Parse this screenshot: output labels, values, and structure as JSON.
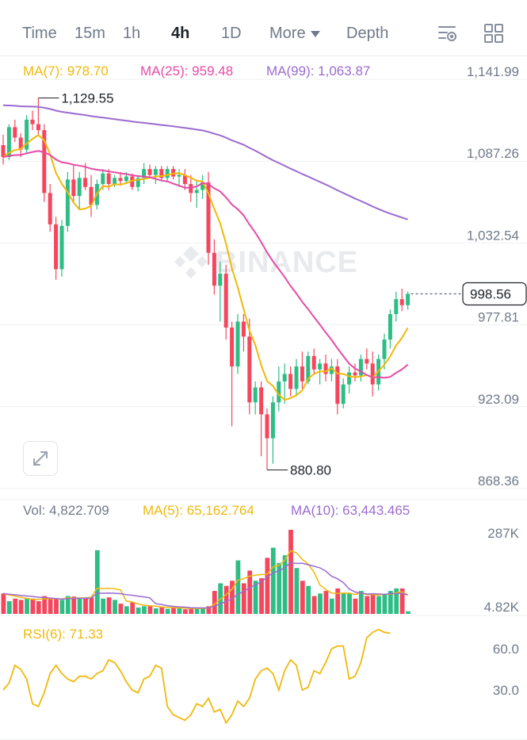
{
  "toolbar": {
    "tabs": [
      "Time",
      "15m",
      "1h",
      "4h",
      "1D"
    ],
    "active_tab": "4h",
    "more_label": "More",
    "depth_label": "Depth"
  },
  "colors": {
    "up": "#2ebd85",
    "down": "#f6465d",
    "ma7": "#f0b90b",
    "ma25": "#e64ba6",
    "ma99": "#9b6bd1",
    "grid": "#eef0f2",
    "axis_text": "#707a8a"
  },
  "watermark": "BINANCE",
  "indicators": {
    "ma7_label": "MA(7): 978.70",
    "ma25_label": "MA(25): 959.48",
    "ma99_label": "MA(99): 1,063.87",
    "vol_label": "Vol: 4,822.709",
    "vol_ma5_label": "MA(5): 65,162.764",
    "vol_ma10_label": "MA(10): 63,443.465",
    "rsi_label": "RSI(6): 71.33"
  },
  "chart_data": {
    "type": "candlestick",
    "price_axis": {
      "ticks": [
        1141.99,
        1087.26,
        1032.54,
        977.81,
        923.09,
        868.36
      ],
      "tick_labels": [
        "1,141.99",
        "1,087.26",
        "1,032.54",
        "977.81",
        "923.09",
        "868.36"
      ]
    },
    "current_price": 998.56,
    "current_price_label": "998.56",
    "annotations": {
      "high": 1129.55,
      "high_label": "1,129.55",
      "low": 880.8,
      "low_label": "880.80"
    },
    "candles": [
      [
        1098,
        1105,
        1085,
        1090
      ],
      [
        1090,
        1112,
        1088,
        1110
      ],
      [
        1110,
        1115,
        1100,
        1103
      ],
      [
        1103,
        1106,
        1090,
        1095
      ],
      [
        1095,
        1118,
        1092,
        1115
      ],
      [
        1115,
        1121,
        1108,
        1112
      ],
      [
        1112,
        1129.55,
        1105,
        1108
      ],
      [
        1108,
        1112,
        1060,
        1066
      ],
      [
        1066,
        1072,
        1040,
        1045
      ],
      [
        1045,
        1050,
        1008,
        1015
      ],
      [
        1015,
        1048,
        1010,
        1044
      ],
      [
        1044,
        1080,
        1040,
        1075
      ],
      [
        1075,
        1085,
        1060,
        1064
      ],
      [
        1064,
        1080,
        1055,
        1076
      ],
      [
        1076,
        1086,
        1068,
        1070
      ],
      [
        1070,
        1078,
        1050,
        1058
      ],
      [
        1058,
        1075,
        1055,
        1072
      ],
      [
        1072,
        1082,
        1068,
        1079
      ],
      [
        1079,
        1082,
        1068,
        1072
      ],
      [
        1072,
        1078,
        1070,
        1076
      ],
      [
        1076,
        1080,
        1071,
        1074
      ],
      [
        1074,
        1080,
        1072,
        1077
      ],
      [
        1077,
        1079,
        1068,
        1070
      ],
      [
        1070,
        1078,
        1067,
        1076
      ],
      [
        1076,
        1086,
        1072,
        1082
      ],
      [
        1082,
        1085,
        1076,
        1078
      ],
      [
        1078,
        1084,
        1072,
        1082
      ],
      [
        1082,
        1084,
        1074,
        1076
      ],
      [
        1076,
        1084,
        1074,
        1082
      ],
      [
        1082,
        1084,
        1075,
        1077
      ],
      [
        1077,
        1082,
        1070,
        1078
      ],
      [
        1078,
        1082,
        1068,
        1072
      ],
      [
        1072,
        1078,
        1060,
        1066
      ],
      [
        1066,
        1075,
        1056,
        1068
      ],
      [
        1068,
        1078,
        1062,
        1073
      ],
      [
        1073,
        1080,
        1018,
        1026
      ],
      [
        1026,
        1035,
        998,
        1004
      ],
      [
        1004,
        1020,
        980,
        1012
      ],
      [
        1012,
        1018,
        968,
        976
      ],
      [
        976,
        980,
        910,
        950
      ],
      [
        950,
        985,
        945,
        980
      ],
      [
        980,
        985,
        960,
        970
      ],
      [
        970,
        982,
        918,
        926
      ],
      [
        926,
        940,
        918,
        936
      ],
      [
        936,
        940,
        890,
        918
      ],
      [
        918,
        922,
        880.8,
        902
      ],
      [
        902,
        930,
        885,
        926
      ],
      [
        926,
        950,
        920,
        940
      ],
      [
        940,
        952,
        925,
        945
      ],
      [
        945,
        950,
        930,
        935
      ],
      [
        935,
        955,
        930,
        950
      ],
      [
        950,
        960,
        935,
        940
      ],
      [
        940,
        960,
        938,
        957
      ],
      [
        957,
        962,
        945,
        948
      ],
      [
        948,
        955,
        938,
        952
      ],
      [
        952,
        958,
        940,
        945
      ],
      [
        945,
        955,
        940,
        950
      ],
      [
        950,
        955,
        918,
        925
      ],
      [
        925,
        942,
        922,
        938
      ],
      [
        938,
        950,
        932,
        946
      ],
      [
        946,
        952,
        940,
        944
      ],
      [
        944,
        958,
        940,
        955
      ],
      [
        955,
        962,
        948,
        952
      ],
      [
        952,
        960,
        930,
        938
      ],
      [
        938,
        958,
        934,
        955
      ],
      [
        955,
        972,
        948,
        968
      ],
      [
        968,
        988,
        962,
        985
      ],
      [
        985,
        1000,
        980,
        995
      ],
      [
        995,
        1002,
        987,
        991
      ],
      [
        991,
        1000,
        988,
        998.56
      ]
    ],
    "volume_axis": {
      "ticks": [
        287,
        4.82
      ],
      "tick_labels": [
        "287K",
        "4.82K"
      ]
    },
    "volumes": [
      80,
      50,
      60,
      55,
      60,
      60,
      50,
      70,
      58,
      60,
      55,
      70,
      68,
      60,
      62,
      65,
      250,
      60,
      65,
      55,
      40,
      30,
      45,
      25,
      30,
      30,
      22,
      28,
      20,
      25,
      22,
      18,
      22,
      20,
      25,
      30,
      90,
      120,
      110,
      130,
      210,
      120,
      170,
      130,
      140,
      220,
      260,
      200,
      230,
      330,
      180,
      130,
      110,
      70,
      80,
      90,
      60,
      100,
      80,
      80,
      60,
      90,
      70,
      80,
      70,
      75,
      90,
      100,
      100,
      10
    ],
    "rsi_axis": {
      "ticks": [
        60.0,
        30.0
      ],
      "tick_labels": [
        "60.0",
        "30.0"
      ]
    },
    "rsi": [
      30,
      35,
      48,
      45,
      38,
      20,
      18,
      28,
      42,
      48,
      42,
      38,
      36,
      40,
      40,
      38,
      42,
      44,
      52,
      50,
      44,
      36,
      30,
      28,
      38,
      40,
      48,
      46,
      18,
      12,
      10,
      8,
      12,
      20,
      18,
      24,
      14,
      16,
      6,
      12,
      22,
      18,
      24,
      38,
      44,
      46,
      42,
      30,
      44,
      52,
      48,
      30,
      32,
      44,
      42,
      50,
      60,
      62,
      62,
      38,
      40,
      50,
      68,
      72,
      74,
      72,
      71.33
    ]
  }
}
